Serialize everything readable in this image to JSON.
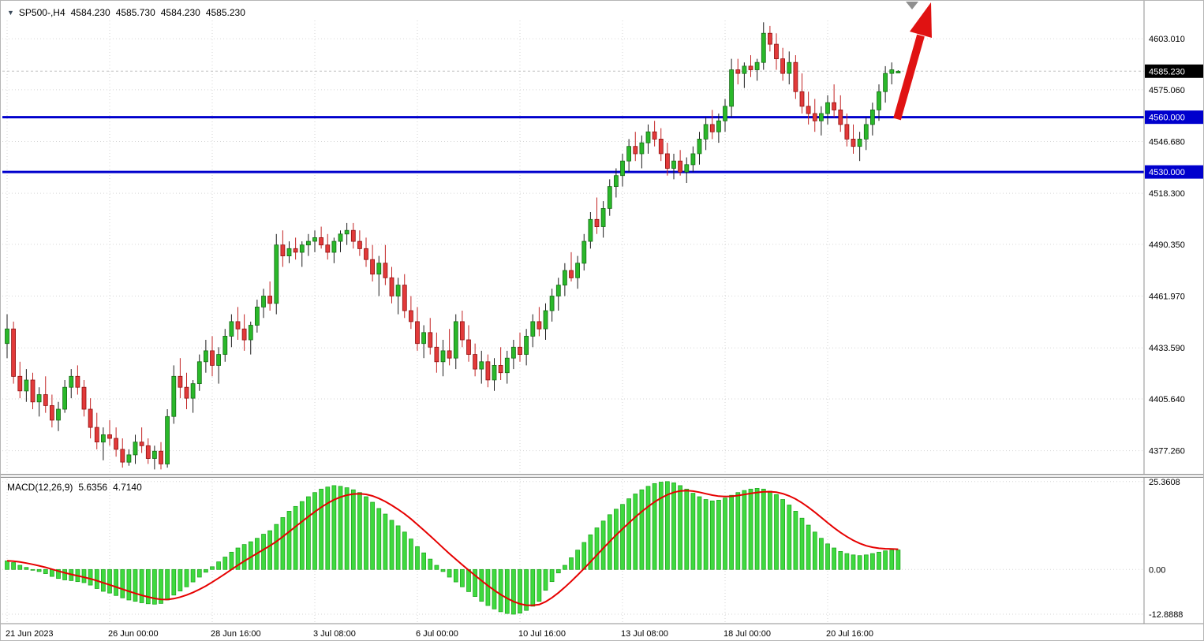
{
  "quote": {
    "symbol_period": "SP500-,H4",
    "open": "4584.230",
    "high": "4585.730",
    "low": "4584.230",
    "close": "4585.230"
  },
  "indicator": {
    "name": "MACD(12,26,9)",
    "macd_value": "5.6356",
    "signal_value": "4.7140"
  },
  "price_axis": {
    "ticks": [
      "4603.010",
      "4575.060",
      "4546.680",
      "4518.300",
      "4490.350",
      "4461.970",
      "4433.590",
      "4405.640",
      "4377.260"
    ],
    "current_price_label": "4585.230",
    "level_labels": [
      "4560.000",
      "4530.000"
    ]
  },
  "macd_axis": {
    "ticks": [
      "25.3608",
      "0.00",
      "-12.8888"
    ]
  },
  "time_axis": {
    "labels": [
      "21 Jun 2023",
      "26 Jun 00:00",
      "28 Jun 16:00",
      "3 Jul 08:00",
      "6 Jul 00:00",
      "10 Jul 16:00",
      "13 Jul 08:00",
      "18 Jul 00:00",
      "20 Jul 16:00"
    ]
  },
  "colors": {
    "bull": "#2ab82a",
    "bull_border": "#156b15",
    "bear": "#e23a3a",
    "bear_border": "#8f1010",
    "wick_bull": "#1c1c1c",
    "wick_bear": "#c22323",
    "grid": "#d6d6d6",
    "level_line": "#0000cd",
    "level_label_bg": "#0000cd",
    "price_label_bg": "#000000",
    "macd_bar": "#3fd93f",
    "macd_bar_border": "#17a017",
    "signal_line": "#e60000",
    "arrow": "#e01212",
    "axis_line": "#8f8f8f",
    "current_price_line": "#c0c0c0"
  },
  "chart_data": {
    "type": "candlestick",
    "title": "SP500- H4 with MACD(12,26,9)",
    "price_range": {
      "min": 4365,
      "max": 4613
    },
    "macd_range": {
      "min": -15.4,
      "max": 26.0
    },
    "horizontal_levels": [
      4560.0,
      4530.0
    ],
    "current_price": 4585.23,
    "time_gridline_bars": [
      0,
      16,
      32,
      48,
      64,
      80,
      96,
      112,
      128
    ],
    "macd_signal_ema_period": 9,
    "candles_ohlc": [
      [
        4436,
        4452,
        4428,
        4444
      ],
      [
        4444,
        4448,
        4414,
        4418
      ],
      [
        4418,
        4426,
        4406,
        4410
      ],
      [
        4410,
        4422,
        4404,
        4416
      ],
      [
        4416,
        4420,
        4400,
        4404
      ],
      [
        4404,
        4412,
        4396,
        4408
      ],
      [
        4408,
        4418,
        4398,
        4402
      ],
      [
        4402,
        4408,
        4390,
        4394
      ],
      [
        4394,
        4404,
        4388,
        4400
      ],
      [
        4400,
        4416,
        4398,
        4412
      ],
      [
        4412,
        4422,
        4406,
        4418
      ],
      [
        4418,
        4424,
        4408,
        4412
      ],
      [
        4412,
        4416,
        4396,
        4400
      ],
      [
        4400,
        4406,
        4384,
        4390
      ],
      [
        4390,
        4398,
        4378,
        4382
      ],
      [
        4382,
        4390,
        4372,
        4386
      ],
      [
        4386,
        4394,
        4380,
        4384
      ],
      [
        4384,
        4390,
        4374,
        4378
      ],
      [
        4378,
        4384,
        4368,
        4371
      ],
      [
        4371,
        4378,
        4369,
        4375
      ],
      [
        4375,
        4386,
        4370,
        4382
      ],
      [
        4382,
        4390,
        4376,
        4380
      ],
      [
        4380,
        4384,
        4370,
        4373
      ],
      [
        4373,
        4380,
        4367,
        4377
      ],
      [
        4377,
        4382,
        4367,
        4370
      ],
      [
        4370,
        4400,
        4368,
        4396
      ],
      [
        4396,
        4424,
        4392,
        4418
      ],
      [
        4418,
        4428,
        4406,
        4412
      ],
      [
        4412,
        4420,
        4400,
        4406
      ],
      [
        4406,
        4416,
        4398,
        4414
      ],
      [
        4414,
        4430,
        4410,
        4426
      ],
      [
        4426,
        4438,
        4420,
        4432
      ],
      [
        4432,
        4440,
        4418,
        4424
      ],
      [
        4424,
        4434,
        4414,
        4430
      ],
      [
        4430,
        4444,
        4426,
        4440
      ],
      [
        4440,
        4452,
        4434,
        4448
      ],
      [
        4448,
        4456,
        4438,
        4444
      ],
      [
        4444,
        4452,
        4432,
        4438
      ],
      [
        4438,
        4448,
        4430,
        4446
      ],
      [
        4446,
        4460,
        4442,
        4456
      ],
      [
        4456,
        4466,
        4450,
        4462
      ],
      [
        4462,
        4470,
        4454,
        4458
      ],
      [
        4458,
        4496,
        4452,
        4490
      ],
      [
        4490,
        4498,
        4478,
        4484
      ],
      [
        4484,
        4492,
        4480,
        4488
      ],
      [
        4488,
        4494,
        4482,
        4486
      ],
      [
        4486,
        4492,
        4478,
        4490
      ],
      [
        4490,
        4496,
        4484,
        4492
      ],
      [
        4492,
        4498,
        4486,
        4494
      ],
      [
        4494,
        4500,
        4488,
        4490
      ],
      [
        4490,
        4496,
        4482,
        4486
      ],
      [
        4486,
        4494,
        4480,
        4492
      ],
      [
        4492,
        4498,
        4486,
        4496
      ],
      [
        4496,
        4502,
        4490,
        4498
      ],
      [
        4498,
        4502,
        4488,
        4492
      ],
      [
        4492,
        4498,
        4484,
        4488
      ],
      [
        4488,
        4494,
        4478,
        4482
      ],
      [
        4482,
        4490,
        4470,
        4474
      ],
      [
        4474,
        4484,
        4462,
        4480
      ],
      [
        4480,
        4490,
        4468,
        4472
      ],
      [
        4472,
        4478,
        4458,
        4462
      ],
      [
        4462,
        4472,
        4452,
        4468
      ],
      [
        4468,
        4474,
        4450,
        4454
      ],
      [
        4454,
        4462,
        4444,
        4448
      ],
      [
        4448,
        4456,
        4432,
        4436
      ],
      [
        4436,
        4446,
        4428,
        4442
      ],
      [
        4442,
        4450,
        4430,
        4434
      ],
      [
        4434,
        4442,
        4420,
        4426
      ],
      [
        4426,
        4438,
        4418,
        4432
      ],
      [
        4432,
        4444,
        4424,
        4428
      ],
      [
        4428,
        4452,
        4422,
        4448
      ],
      [
        4448,
        4454,
        4434,
        4438
      ],
      [
        4438,
        4446,
        4426,
        4430
      ],
      [
        4430,
        4436,
        4418,
        4422
      ],
      [
        4422,
        4432,
        4414,
        4426
      ],
      [
        4426,
        4430,
        4412,
        4416
      ],
      [
        4416,
        4428,
        4410,
        4424
      ],
      [
        4424,
        4434,
        4416,
        4420
      ],
      [
        4420,
        4432,
        4414,
        4428
      ],
      [
        4428,
        4438,
        4422,
        4434
      ],
      [
        4434,
        4442,
        4426,
        4430
      ],
      [
        4430,
        4444,
        4424,
        4440
      ],
      [
        4440,
        4452,
        4434,
        4448
      ],
      [
        4448,
        4456,
        4440,
        4444
      ],
      [
        4444,
        4458,
        4438,
        4454
      ],
      [
        4454,
        4466,
        4448,
        4462
      ],
      [
        4462,
        4472,
        4454,
        4468
      ],
      [
        4468,
        4480,
        4462,
        4476
      ],
      [
        4476,
        4486,
        4470,
        4472
      ],
      [
        4472,
        4484,
        4466,
        4480
      ],
      [
        4480,
        4496,
        4476,
        4492
      ],
      [
        4492,
        4508,
        4488,
        4504
      ],
      [
        4504,
        4516,
        4496,
        4500
      ],
      [
        4500,
        4514,
        4494,
        4510
      ],
      [
        4510,
        4526,
        4506,
        4522
      ],
      [
        4522,
        4532,
        4516,
        4528
      ],
      [
        4528,
        4540,
        4522,
        4536
      ],
      [
        4536,
        4548,
        4530,
        4544
      ],
      [
        4544,
        4552,
        4536,
        4540
      ],
      [
        4540,
        4550,
        4532,
        4546
      ],
      [
        4546,
        4556,
        4540,
        4552
      ],
      [
        4552,
        4558,
        4544,
        4548
      ],
      [
        4548,
        4554,
        4536,
        4540
      ],
      [
        4540,
        4546,
        4528,
        4532
      ],
      [
        4532,
        4540,
        4526,
        4536
      ],
      [
        4536,
        4542,
        4528,
        4530
      ],
      [
        4530,
        4538,
        4524,
        4534
      ],
      [
        4534,
        4544,
        4530,
        4540
      ],
      [
        4540,
        4552,
        4534,
        4548
      ],
      [
        4548,
        4560,
        4542,
        4556
      ],
      [
        4556,
        4564,
        4548,
        4552
      ],
      [
        4552,
        4562,
        4546,
        4558
      ],
      [
        4558,
        4570,
        4552,
        4566
      ],
      [
        4566,
        4592,
        4560,
        4586
      ],
      [
        4586,
        4592,
        4578,
        4584
      ],
      [
        4584,
        4590,
        4576,
        4588
      ],
      [
        4588,
        4594,
        4582,
        4586
      ],
      [
        4586,
        4592,
        4580,
        4590
      ],
      [
        4590,
        4612,
        4586,
        4606
      ],
      [
        4606,
        4610,
        4596,
        4600
      ],
      [
        4600,
        4606,
        4586,
        4592
      ],
      [
        4592,
        4598,
        4580,
        4584
      ],
      [
        4584,
        4596,
        4578,
        4590
      ],
      [
        4590,
        4594,
        4570,
        4574
      ],
      [
        4574,
        4584,
        4562,
        4566
      ],
      [
        4566,
        4574,
        4556,
        4562
      ],
      [
        4562,
        4570,
        4552,
        4558
      ],
      [
        4558,
        4566,
        4550,
        4562
      ],
      [
        4562,
        4572,
        4556,
        4568
      ],
      [
        4568,
        4578,
        4560,
        4564
      ],
      [
        4564,
        4572,
        4552,
        4556
      ],
      [
        4556,
        4562,
        4544,
        4548
      ],
      [
        4548,
        4556,
        4540,
        4544
      ],
      [
        4544,
        4552,
        4536,
        4548
      ],
      [
        4548,
        4560,
        4542,
        4556
      ],
      [
        4556,
        4568,
        4550,
        4564
      ],
      [
        4564,
        4578,
        4558,
        4574
      ],
      [
        4574,
        4588,
        4568,
        4584
      ],
      [
        4584,
        4590,
        4578,
        4586
      ],
      [
        4584.23,
        4585.73,
        4584.23,
        4585.23
      ]
    ],
    "macd_histogram": [
      2.5,
      2.0,
      1.2,
      0.6,
      0.0,
      -0.6,
      -1.2,
      -2.0,
      -2.6,
      -3.0,
      -3.2,
      -3.5,
      -3.8,
      -4.5,
      -5.5,
      -6.3,
      -6.8,
      -7.5,
      -8.2,
      -8.8,
      -9.2,
      -9.6,
      -9.9,
      -10.0,
      -9.8,
      -8.8,
      -7.4,
      -6.2,
      -5.0,
      -3.6,
      -2.2,
      -0.8,
      0.8,
      2.2,
      3.6,
      5.0,
      6.2,
      7.2,
      8.0,
      9.0,
      10.2,
      11.2,
      13.0,
      15.0,
      16.8,
      18.2,
      19.6,
      21.0,
      22.2,
      23.2,
      23.8,
      24.2,
      24.0,
      23.6,
      23.0,
      22.2,
      21.0,
      19.4,
      17.6,
      16.0,
      14.2,
      12.6,
      10.8,
      8.8,
      6.6,
      4.8,
      3.0,
      1.2,
      -0.6,
      -2.2,
      -3.6,
      -5.0,
      -6.4,
      -7.8,
      -9.2,
      -10.4,
      -11.4,
      -12.2,
      -12.7,
      -12.9,
      -12.6,
      -11.8,
      -10.6,
      -9.2,
      -6.0,
      -3.5,
      -1.0,
      1.2,
      3.4,
      5.6,
      7.8,
      10.0,
      12.0,
      14.0,
      15.8,
      17.4,
      18.8,
      20.4,
      21.8,
      23.0,
      24.0,
      24.8,
      25.2,
      25.36,
      25.0,
      24.2,
      23.2,
      22.0,
      21.0,
      20.2,
      19.8,
      20.0,
      20.6,
      21.4,
      22.2,
      22.8,
      23.2,
      23.4,
      23.2,
      22.6,
      21.6,
      20.2,
      18.6,
      16.8,
      14.8,
      12.8,
      10.8,
      9.0,
      7.4,
      6.2,
      5.2,
      4.6,
      4.2,
      4.0,
      4.2,
      4.6,
      5.0,
      5.4,
      5.6,
      5.6356
    ]
  }
}
